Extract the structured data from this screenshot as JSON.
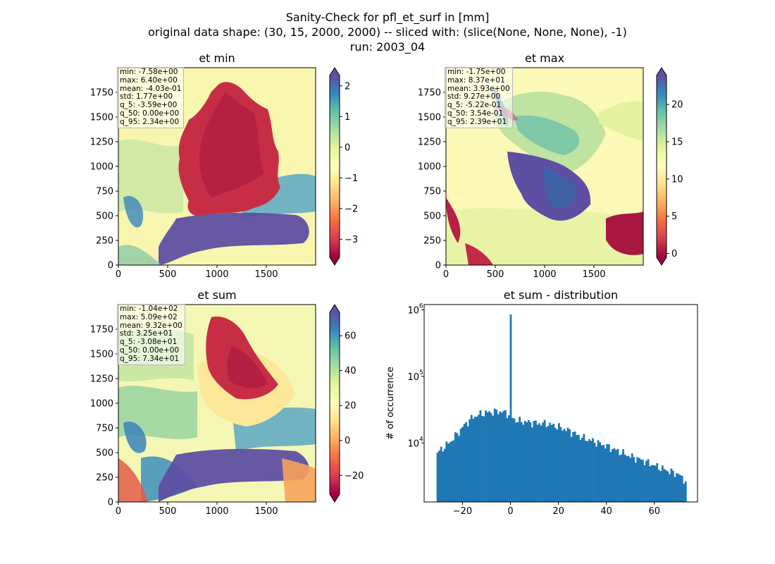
{
  "suptitle": {
    "line1": "Sanity-Check for pfl_et_surf in [mm]",
    "line2": "original data shape: (30, 15, 2000, 2000) -- sliced with: (slice(None, None, None), -1)",
    "line3": "run: 2003_04"
  },
  "panels": {
    "min": {
      "title": "et min",
      "stats": [
        "min: -7.58e+00",
        "max: 6.40e+00",
        "mean: -4.03e-01",
        "std: 1.77e+00",
        "q_5: -3.59e+00",
        "q_50: 0.00e+00",
        "q_95: 2.34e+00"
      ],
      "colorbar": {
        "range": [
          -3.59,
          2.34
        ],
        "ticks": [
          "2",
          "1",
          "0",
          "−1",
          "−2",
          "−3"
        ],
        "tick_values": [
          2,
          1,
          0,
          -1,
          -2,
          -3
        ],
        "colormap": "Spectral"
      }
    },
    "max": {
      "title": "et max",
      "stats": [
        "min: -1.75e+00",
        "max: 8.37e+01",
        "mean: 3.93e+00",
        "std: 9.27e+00",
        "q_5: -5.22e-01",
        "q_50: 3.54e-01",
        "q_95: 2.39e+01"
      ],
      "colorbar": {
        "range": [
          -0.522,
          23.9
        ],
        "ticks": [
          "20",
          "15",
          "10",
          "5",
          "0"
        ],
        "tick_values": [
          20,
          15,
          10,
          5,
          0
        ],
        "colormap": "Spectral"
      }
    },
    "sum": {
      "title": "et sum",
      "stats": [
        "min: -1.04e+02",
        "max: 5.09e+02",
        "mean: 9.32e+00",
        "std: 3.25e+01",
        "q_5: -3.08e+01",
        "q_50: 0.00e+00",
        "q_95: 7.34e+01"
      ],
      "colorbar": {
        "range": [
          -30.8,
          73.4
        ],
        "ticks": [
          "60",
          "40",
          "20",
          "0",
          "−20"
        ],
        "tick_values": [
          60,
          40,
          20,
          0,
          -20
        ],
        "colormap": "Spectral"
      }
    }
  },
  "map_axes": {
    "x_ticks": [
      "0",
      "500",
      "1000",
      "1500"
    ],
    "y_ticks": [
      "1750",
      "1500",
      "1250",
      "1000",
      "750",
      "500",
      "250",
      "0"
    ],
    "x_tick_values": [
      0,
      500,
      1000,
      1500
    ],
    "y_tick_values": [
      1750,
      1500,
      1250,
      1000,
      750,
      500,
      250,
      0
    ],
    "xlim": [
      0,
      2000
    ],
    "ylim": [
      0,
      2000
    ]
  },
  "chart_data": {
    "type": "bar",
    "title": "et sum - distribution",
    "xlabel": "",
    "ylabel": "# of occurrence",
    "yscale": "log",
    "xlim": [
      -36,
      78
    ],
    "ylim": [
      1300,
      1200000
    ],
    "x_ticks": [
      "−20",
      "0",
      "20",
      "40",
      "60"
    ],
    "x_tick_values": [
      -20,
      0,
      20,
      40,
      60
    ],
    "y_ticks": [
      "10^4",
      "10^5",
      "10^6"
    ],
    "y_tick_values": [
      10000,
      100000,
      1000000
    ],
    "bin_range": [
      -30.8,
      73.4
    ],
    "peak": {
      "x": 0,
      "count": 850000
    },
    "envelope": {
      "x": [
        -30.8,
        -28,
        -25,
        -22,
        -19,
        -16,
        -13,
        -10,
        -8,
        -5,
        -2,
        0,
        2,
        5,
        10,
        15,
        20,
        25,
        30,
        35,
        40,
        45,
        50,
        55,
        60,
        65,
        70,
        73.4
      ],
      "count": [
        7000,
        8500,
        10500,
        14000,
        19000,
        24000,
        27000,
        28500,
        29000,
        30000,
        28500,
        26000,
        22000,
        21000,
        20000,
        19500,
        17500,
        15000,
        12000,
        10500,
        9000,
        7500,
        6300,
        5500,
        4600,
        3900,
        3400,
        2600
      ]
    },
    "bar_color": "#1f77b4",
    "grid": false
  }
}
